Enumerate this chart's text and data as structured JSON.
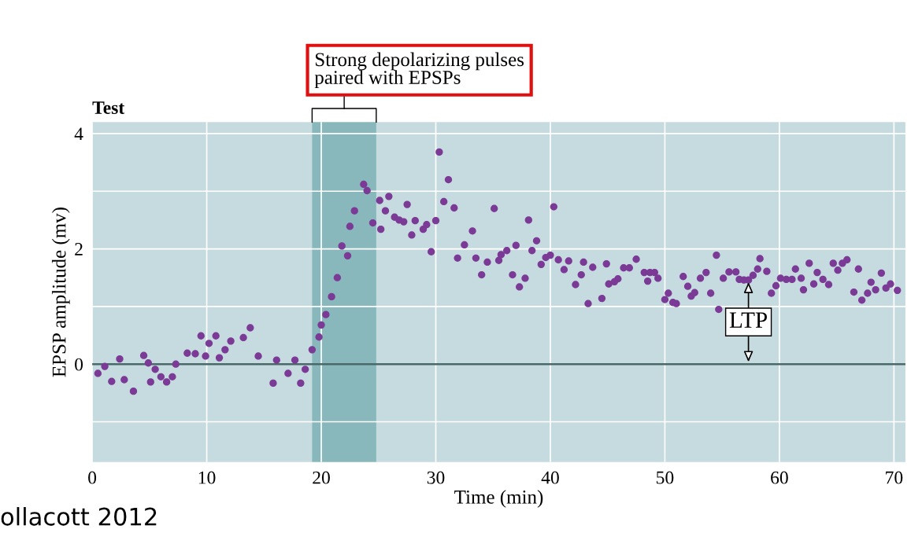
{
  "chart_data": {
    "type": "scatter",
    "title": "Test",
    "xlabel": "Time (min)",
    "ylabel": "EPSP amplitude (mv)",
    "xlim": [
      0,
      71
    ],
    "xticks": [
      0,
      10,
      20,
      30,
      40,
      50,
      60,
      70
    ],
    "ylim": [
      -1.7,
      4.2
    ],
    "yticks": [
      {
        "value": -1,
        "label": null
      },
      0,
      {
        "value": 1,
        "label": null
      },
      2,
      {
        "value": 3,
        "label": null
      },
      4
    ],
    "grid": true,
    "marker": "circle",
    "bands": [
      {
        "axis": "x",
        "from": 19.2,
        "to": 24.8,
        "label": "Strong depolarizing pulses\npaired with EPSPs",
        "color": "#88b8bb"
      }
    ],
    "ref_lines": [
      {
        "axis": "y",
        "value": 0,
        "color": "#4a6a6a"
      }
    ],
    "annotations": [
      "LTP",
      "ollacott 2012"
    ],
    "series": [
      {
        "color": "#7b3a96",
        "x": [
          0.5,
          1.1,
          1.7,
          2.4,
          2.8,
          3.6,
          4.5,
          4.9,
          5.1,
          5.5,
          6.0,
          6.5,
          7.0,
          7.3,
          8.3,
          9.0,
          9.5,
          9.9,
          10.2,
          10.8,
          11.1,
          11.6,
          12.1,
          13.2,
          13.8,
          14.5,
          15.8,
          16.1,
          17.1,
          17.7,
          18.2,
          18.6,
          19.2,
          19.8,
          20.0,
          20.4,
          20.9,
          21.4,
          21.8,
          22.3,
          22.5,
          22.9,
          23.7,
          24.0,
          24.5,
          25.1,
          25.2,
          25.6,
          25.9,
          26.4,
          26.8,
          27.2,
          27.5,
          27.9,
          28.2,
          28.9,
          29.2,
          29.6,
          30.0,
          30.3,
          30.7,
          31.1,
          31.6,
          31.9,
          32.5,
          33.2,
          33.5,
          34.0,
          34.5,
          35.1,
          35.5,
          35.7,
          36.2,
          36.7,
          37.0,
          37.3,
          37.8,
          38.1,
          38.4,
          38.8,
          39.2,
          39.6,
          40.0,
          40.3,
          40.7,
          41.2,
          41.6,
          42.2,
          42.7,
          42.9,
          43.3,
          43.7,
          44.5,
          44.9,
          45.1,
          45.6,
          45.9,
          46.4,
          46.9,
          47.5,
          48.2,
          48.5,
          48.7,
          49.1,
          49.4,
          50.0,
          50.3,
          50.7,
          51.0,
          51.6,
          52.0,
          52.3,
          52.6,
          53.1,
          53.6,
          54.0,
          54.5,
          54.7,
          55.1,
          55.6,
          56.2,
          56.5,
          56.9,
          57.3,
          57.7,
          58.1,
          58.3,
          58.9,
          59.3,
          59.7,
          60.1,
          60.6,
          61.1,
          61.4,
          61.9,
          62.1,
          62.6,
          63.0,
          63.3,
          63.8,
          64.3,
          64.7,
          65.1,
          65.5,
          65.9,
          66.5,
          66.9,
          67.2,
          67.7,
          68.0,
          68.4,
          68.9,
          69.3,
          69.7,
          70.3
        ],
        "values": [
          -0.16,
          -0.04,
          -0.3,
          0.09,
          -0.27,
          -0.47,
          0.15,
          0.02,
          -0.31,
          -0.09,
          -0.22,
          -0.31,
          -0.22,
          0.0,
          0.19,
          0.18,
          0.49,
          0.14,
          0.36,
          0.49,
          0.11,
          0.25,
          0.4,
          0.46,
          0.63,
          0.14,
          -0.33,
          0.07,
          -0.16,
          0.07,
          -0.33,
          -0.09,
          0.25,
          0.47,
          0.68,
          0.86,
          1.17,
          1.5,
          2.05,
          1.88,
          2.39,
          2.66,
          3.12,
          3.01,
          2.45,
          2.84,
          2.34,
          2.66,
          2.91,
          2.55,
          2.5,
          2.47,
          2.77,
          2.24,
          2.49,
          2.34,
          2.42,
          1.95,
          2.49,
          3.68,
          2.82,
          3.2,
          2.71,
          1.84,
          2.07,
          2.31,
          1.84,
          1.55,
          1.77,
          2.7,
          1.8,
          1.9,
          1.97,
          1.55,
          2.06,
          1.34,
          1.49,
          2.5,
          1.97,
          2.14,
          1.73,
          1.85,
          1.89,
          2.73,
          1.81,
          1.64,
          1.79,
          1.38,
          1.55,
          1.77,
          1.05,
          1.68,
          1.14,
          1.74,
          1.39,
          1.43,
          1.48,
          1.67,
          1.67,
          1.82,
          1.59,
          1.44,
          1.59,
          1.59,
          1.49,
          1.12,
          1.23,
          1.07,
          1.05,
          1.52,
          1.35,
          1.18,
          1.24,
          1.49,
          1.59,
          1.23,
          1.89,
          0.95,
          1.49,
          1.6,
          1.6,
          1.47,
          1.46,
          1.46,
          1.54,
          1.65,
          1.83,
          1.61,
          1.23,
          1.36,
          1.49,
          1.47,
          1.47,
          1.65,
          1.49,
          1.29,
          1.75,
          1.39,
          1.59,
          1.47,
          1.38,
          1.75,
          1.63,
          1.75,
          1.81,
          1.25,
          1.65,
          1.11,
          1.23,
          1.42,
          1.29,
          1.58,
          1.32,
          1.39,
          1.28
        ]
      }
    ]
  }
}
